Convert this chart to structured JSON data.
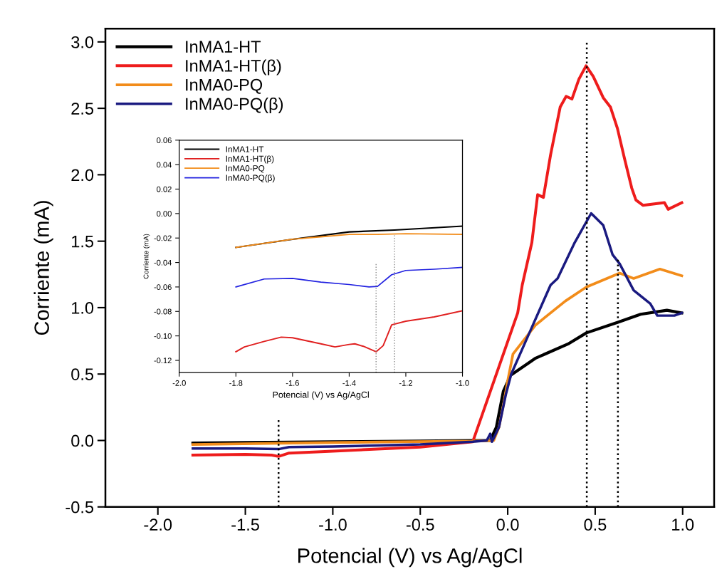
{
  "chart_data": [
    {
      "type": "line",
      "xlabel": "Potencial (V) vs Ag/AgCl",
      "ylabel": "Corriente (mA)",
      "xlim": [
        -2.3,
        1.18
      ],
      "ylim": [
        -0.5,
        3.1
      ],
      "xticks": [
        {
          "value": -2.0,
          "label": "-2.0"
        },
        {
          "value": -1.5,
          "label": "-1.5"
        },
        {
          "value": -1.0,
          "label": "-1.0"
        },
        {
          "value": -0.5,
          "label": "-0.5"
        },
        {
          "value": 0.0,
          "label": "0.0"
        },
        {
          "value": 0.5,
          "label": "0.5"
        },
        {
          "value": 1.0,
          "label": "1.0"
        }
      ],
      "yticks": [
        {
          "value": -0.5,
          "label": "-0.5"
        },
        {
          "value": 0.0,
          "label": "0.0"
        },
        {
          "value": 0.5,
          "label": "0.5"
        },
        {
          "value": 1.0,
          "label": "1.0"
        },
        {
          "value": 1.5,
          "label": "1.5"
        },
        {
          "value": 2.0,
          "label": "2.0"
        },
        {
          "value": 2.5,
          "label": "2.5"
        },
        {
          "value": 3.0,
          "label": "3.0"
        }
      ],
      "legend": "top left",
      "grid": false,
      "marker": "none",
      "line_style": "solid",
      "series": [
        {
          "name": "InMA1-HT",
          "color": "#000000",
          "x": [
            -1.8,
            -1.5,
            -1.0,
            -0.5,
            -0.2,
            -0.1,
            -0.065,
            -0.025,
            0.016,
            0.16,
            0.35,
            0.45,
            0.63,
            0.76,
            0.91,
            0.995
          ],
          "values": [
            -0.02,
            -0.015,
            -0.01,
            -0.005,
            0.0,
            0.0,
            0.1,
            0.37,
            0.49,
            0.62,
            0.73,
            0.81,
            0.89,
            0.95,
            0.98,
            0.96
          ]
        },
        {
          "name": "InMA1-HT(β)",
          "color": "#ee1c1c",
          "x": [
            -1.8,
            -1.5,
            -1.35,
            -1.31,
            -1.25,
            -1.0,
            -0.5,
            -0.2,
            0.057,
            0.083,
            0.138,
            0.171,
            0.204,
            0.245,
            0.3,
            0.334,
            0.367,
            0.407,
            0.448,
            0.489,
            0.546,
            0.587,
            0.627,
            0.668,
            0.709,
            0.733,
            0.774,
            0.896,
            0.917,
            0.995
          ],
          "values": [
            -0.11,
            -0.105,
            -0.11,
            -0.12,
            -0.095,
            -0.08,
            -0.05,
            -0.01,
            0.96,
            1.17,
            1.49,
            1.85,
            1.83,
            2.15,
            2.51,
            2.59,
            2.57,
            2.72,
            2.82,
            2.74,
            2.58,
            2.51,
            2.35,
            2.12,
            1.9,
            1.81,
            1.77,
            1.79,
            1.74,
            1.79
          ]
        },
        {
          "name": "InMA0-PQ",
          "color": "#f28c1a",
          "x": [
            -1.8,
            -1.0,
            -0.2,
            -0.08,
            -0.05,
            -0.02,
            0.0,
            0.03,
            0.16,
            0.33,
            0.45,
            0.64,
            0.72,
            0.87,
            0.995
          ],
          "values": [
            -0.03,
            -0.015,
            -0.005,
            0.0,
            0.1,
            0.3,
            0.45,
            0.65,
            0.87,
            1.05,
            1.155,
            1.26,
            1.22,
            1.29,
            1.24
          ]
        },
        {
          "name": "InMA0-PQ(β)",
          "color": "#1a1a80",
          "x": [
            -1.8,
            -1.5,
            -1.31,
            -1.25,
            -1.0,
            -0.5,
            -0.2,
            -0.12,
            -0.1,
            -0.09,
            -0.05,
            -0.01,
            0.02,
            0.124,
            0.245,
            0.285,
            0.383,
            0.477,
            0.546,
            0.599,
            0.64,
            0.72,
            0.815,
            0.855,
            0.953,
            0.995
          ],
          "values": [
            -0.06,
            -0.06,
            -0.065,
            -0.05,
            -0.045,
            -0.03,
            -0.01,
            0.0,
            0.05,
            -0.01,
            0.1,
            0.35,
            0.5,
            0.81,
            1.17,
            1.22,
            1.49,
            1.71,
            1.62,
            1.4,
            1.33,
            1.13,
            1.03,
            0.94,
            0.94,
            0.96
          ]
        },
        {
          "color": "#000000",
          "line_style": "dotted",
          "x": [
            -1.31,
            -1.31
          ],
          "values": [
            -0.5,
            0.17
          ]
        },
        {
          "color": "#000000",
          "line_style": "dotted",
          "x": [
            0.452,
            0.452
          ],
          "values": [
            -0.5,
            3.0
          ]
        },
        {
          "color": "#000000",
          "line_style": "dotted",
          "x": [
            0.63,
            0.63
          ],
          "values": [
            -0.5,
            1.38
          ]
        }
      ]
    },
    {
      "type": "line",
      "xlabel": "Potencial (V) vs Ag/AgCl",
      "ylabel": "Corriente (mA)",
      "xlim": [
        -2.0,
        -1.0
      ],
      "ylim": [
        -0.13,
        0.06
      ],
      "xticks": [
        {
          "value": -2.0,
          "label": "-2.0"
        },
        {
          "value": -1.8,
          "label": "-1.8"
        },
        {
          "value": -1.6,
          "label": "-1.6"
        },
        {
          "value": -1.4,
          "label": "-1.4"
        },
        {
          "value": -1.2,
          "label": "-1.2"
        },
        {
          "value": -1.0,
          "label": "-1.0"
        }
      ],
      "yticks": [
        {
          "value": -0.12,
          "label": "-0.12"
        },
        {
          "value": -0.1,
          "label": "-0.10"
        },
        {
          "value": -0.08,
          "label": "-0.08"
        },
        {
          "value": -0.06,
          "label": "-0.06"
        },
        {
          "value": -0.04,
          "label": "-0.04"
        },
        {
          "value": -0.02,
          "label": "-0.02"
        },
        {
          "value": 0.0,
          "label": "0.00"
        },
        {
          "value": 0.02,
          "label": "0.02"
        },
        {
          "value": 0.04,
          "label": "0.04"
        },
        {
          "value": 0.06,
          "label": "0.06"
        }
      ],
      "legend": "top left",
      "grid": false,
      "marker": "none",
      "line_style": "solid",
      "series": [
        {
          "name": "InMA1-HT",
          "color": "#000000",
          "x": [
            -1.8,
            -1.6,
            -1.4,
            -1.24,
            -1.0
          ],
          "values": [
            -0.0277,
            -0.021,
            -0.015,
            -0.0135,
            -0.0103
          ]
        },
        {
          "name": "InMA1-HT(β)",
          "color": "#e02020",
          "x": [
            -1.8,
            -1.77,
            -1.7,
            -1.64,
            -1.6,
            -1.5,
            -1.45,
            -1.4,
            -1.38,
            -1.35,
            -1.305,
            -1.28,
            -1.25,
            -1.2,
            -1.1,
            -1.0
          ],
          "values": [
            -0.113,
            -0.109,
            -0.1045,
            -0.101,
            -0.1015,
            -0.1065,
            -0.109,
            -0.107,
            -0.1065,
            -0.1085,
            -0.113,
            -0.108,
            -0.091,
            -0.088,
            -0.0845,
            -0.0795
          ]
        },
        {
          "name": "InMA0-PQ",
          "color": "#f28c1a",
          "x": [
            -1.8,
            -1.6,
            -1.5,
            -1.4,
            -1.3,
            -1.2,
            -1.0
          ],
          "values": [
            -0.0277,
            -0.021,
            -0.019,
            -0.017,
            -0.017,
            -0.0165,
            -0.017
          ]
        },
        {
          "name": "InMA0-PQ(β)",
          "color": "#2222e0",
          "x": [
            -1.8,
            -1.7,
            -1.6,
            -1.5,
            -1.4,
            -1.33,
            -1.3,
            -1.25,
            -1.2,
            -1.1,
            -1.0
          ],
          "values": [
            -0.06,
            -0.0535,
            -0.053,
            -0.056,
            -0.058,
            -0.06,
            -0.0595,
            -0.05,
            -0.0465,
            -0.0455,
            -0.044
          ]
        },
        {
          "color": "#888888",
          "line_style": "dotted",
          "x": [
            -1.305,
            -1.305
          ],
          "values": [
            -0.13,
            -0.04
          ]
        },
        {
          "color": "#888888",
          "line_style": "dotted",
          "x": [
            -1.24,
            -1.24
          ],
          "values": [
            -0.13,
            -0.017
          ]
        }
      ]
    }
  ]
}
